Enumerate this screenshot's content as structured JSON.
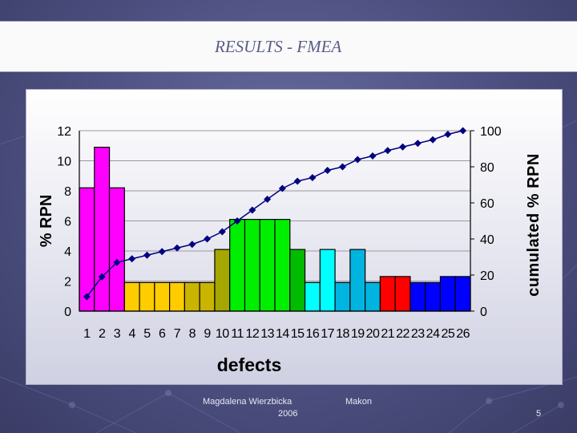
{
  "slide": {
    "title": "RESULTS - FMEA",
    "footer_author": "Magdalena Wierzbicka",
    "footer_year": "2006",
    "footer_company": "Makon",
    "page_number": "5"
  },
  "chart_data": {
    "type": "bar",
    "title": "",
    "xlabel": "defects",
    "ylabel": "% RPN",
    "y2label": "cumulated % RPN",
    "categories": [
      "1",
      "2",
      "3",
      "4",
      "5",
      "6",
      "7",
      "8",
      "9",
      "10",
      "11",
      "12",
      "13",
      "14",
      "15",
      "16",
      "17",
      "18",
      "19",
      "20",
      "21",
      "22",
      "23",
      "24",
      "25",
      "26"
    ],
    "series": [
      {
        "name": "% RPN",
        "axis": "left",
        "values": [
          8.2,
          10.9,
          8.2,
          1.9,
          1.9,
          1.9,
          1.9,
          1.9,
          1.9,
          4.1,
          6.1,
          6.1,
          6.1,
          6.1,
          4.1,
          1.9,
          4.1,
          1.9,
          4.1,
          1.9,
          2.3,
          2.3,
          1.9,
          1.9,
          2.3,
          2.3
        ],
        "colors": [
          "#ff00ff",
          "#ff00ff",
          "#ff00ff",
          "#ffcc00",
          "#ffcc00",
          "#ffcc00",
          "#ffcc00",
          "#c9b400",
          "#c9b400",
          "#a6a600",
          "#00ee00",
          "#00ee00",
          "#00ee00",
          "#00ee00",
          "#00bb00",
          "#00ffff",
          "#00ffff",
          "#00b4e0",
          "#00b4e0",
          "#00b4e0",
          "#ff0000",
          "#ff0000",
          "#0000ff",
          "#0000ff",
          "#0000ff",
          "#0000ff"
        ]
      },
      {
        "name": "cumulated % RPN",
        "axis": "right",
        "type": "line",
        "color": "#000080",
        "values": [
          8,
          19,
          27,
          29,
          31,
          33,
          35,
          37,
          40,
          44,
          50,
          56,
          62,
          68,
          72,
          74,
          78,
          80,
          84,
          86,
          89,
          91,
          93,
          95,
          98,
          100
        ]
      }
    ],
    "ylim": [
      0,
      12
    ],
    "yticks": [
      0,
      2,
      4,
      6,
      8,
      10,
      12
    ],
    "y2lim": [
      0,
      100
    ],
    "y2ticks": [
      0,
      20,
      40,
      60,
      80,
      100
    ],
    "grid": "horizontal"
  }
}
